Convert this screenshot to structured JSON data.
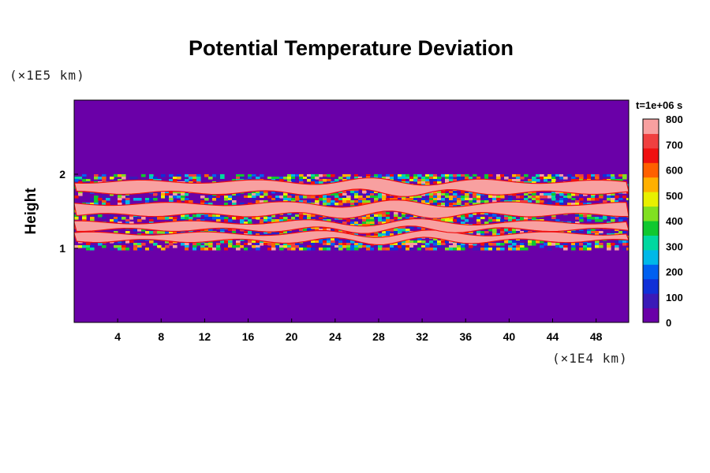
{
  "chart_data": {
    "type": "heatmap",
    "title": "Potential Temperature Deviation",
    "ylabel": "Height",
    "xlabel": "",
    "x_unit_label": "(×1E4 km)",
    "y_unit_label": "(×1E5 km)",
    "time_label": "t=1e+06 s",
    "xlim": [
      0,
      51
    ],
    "ylim": [
      0,
      3
    ],
    "x_ticks": [
      4,
      8,
      12,
      16,
      20,
      24,
      28,
      32,
      36,
      40,
      44,
      48
    ],
    "y_ticks": [
      1,
      2
    ],
    "colorbar": {
      "min": 0,
      "max": 800,
      "tick_labels": [
        0,
        100,
        200,
        300,
        400,
        500,
        600,
        700,
        800
      ],
      "colors": [
        "#6a00a8",
        "#3a1ab8",
        "#1030d8",
        "#0060f0",
        "#00b8e8",
        "#00d8a0",
        "#10c830",
        "#80e020",
        "#e8f000",
        "#ffb000",
        "#ff6000",
        "#f01010",
        "#f04040",
        "#f8a0a0"
      ]
    },
    "background_value": 0,
    "bands": [
      {
        "y_bottom": 1.1,
        "y_top": 1.2,
        "value": 800
      },
      {
        "y_bottom": 1.25,
        "y_top": 1.35,
        "value": 800
      },
      {
        "y_bottom": 1.45,
        "y_top": 1.6,
        "value": 800
      },
      {
        "y_bottom": 1.75,
        "y_top": 1.9,
        "value": 800
      }
    ],
    "turbulent_region": {
      "y_bottom": 1.0,
      "y_top": 2.0,
      "x_center": 29,
      "value_range": [
        0,
        800
      ]
    }
  }
}
